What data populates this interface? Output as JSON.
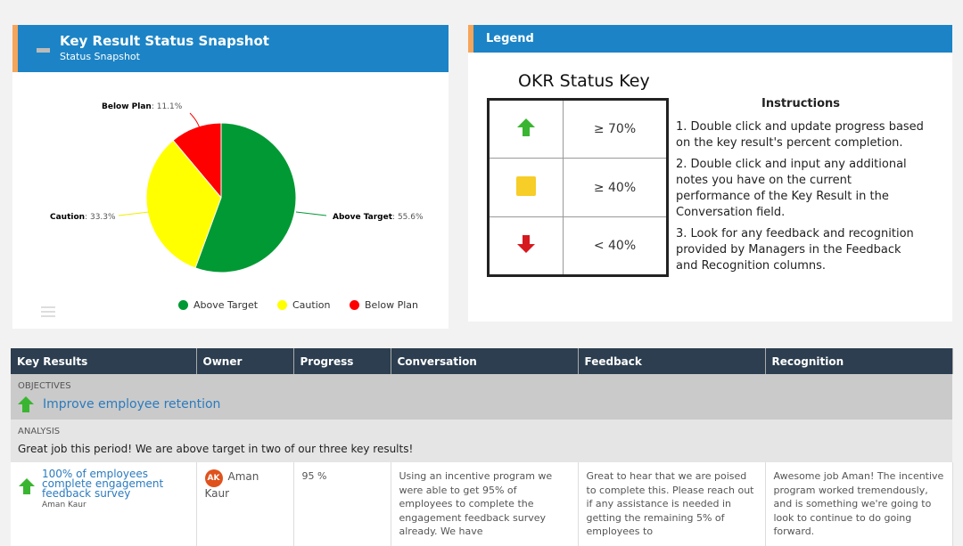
{
  "snapshot": {
    "title": "Key Result Status Snapshot",
    "subtitle": "Status Snapshot"
  },
  "chart_data": {
    "type": "pie",
    "slices": [
      {
        "name": "Above Target",
        "value": 55.6,
        "color": "#009933",
        "label": "Above Target",
        "pct": ": 55.6%"
      },
      {
        "name": "Caution",
        "value": 33.3,
        "color": "#ffff00",
        "label": "Caution",
        "pct": ": 33.3%"
      },
      {
        "name": "Below Plan",
        "value": 11.1,
        "color": "#ff0000",
        "label": "Below Plan",
        "pct": ": 11.1%"
      }
    ],
    "legend": "bottom-right"
  },
  "legend": {
    "title": "Legend",
    "key_title": "OKR Status Key",
    "rows": [
      {
        "icon": "green-up-arrow",
        "text": "≥ 70%"
      },
      {
        "icon": "yellow-square",
        "text": "≥ 40%"
      },
      {
        "icon": "red-down-arrow",
        "text": "< 40%"
      }
    ],
    "instructions_title": "Instructions",
    "instructions": [
      "1. Double click and update progress based on the key result's percent completion.",
      "2. Double click and input any additional notes you have on the current performance of the Key Result in the Conversation field.",
      "3. Look for any feedback and recognition provided by Managers in the Feedback and Recognition columns."
    ]
  },
  "table": {
    "headers": [
      "Key Results",
      "Owner",
      "Progress",
      "Conversation",
      "Feedback",
      "Recognition"
    ],
    "objectives_label": "OBJECTIVES",
    "objective": "Improve employee retention",
    "analysis_label": "ANALYSIS",
    "analysis": "Great job this period! We are above target in two of our three key results!",
    "row": {
      "kr": "100% of employees complete engagement feedback survey",
      "kr_owner": "Aman Kaur",
      "avatar": "AK",
      "owner": "Aman Kaur",
      "progress": "95 %",
      "conversation": "Using an incentive program we were able to get 95% of employees to complete the engagement feedback survey already. We have",
      "feedback": "Great to hear that we are poised to complete this. Please reach out if any assistance is needed in getting the remaining 5% of employees to",
      "recognition": "Awesome job Aman! The incentive program worked tremendously, and is something we're going to look to continue to do going forward."
    }
  }
}
